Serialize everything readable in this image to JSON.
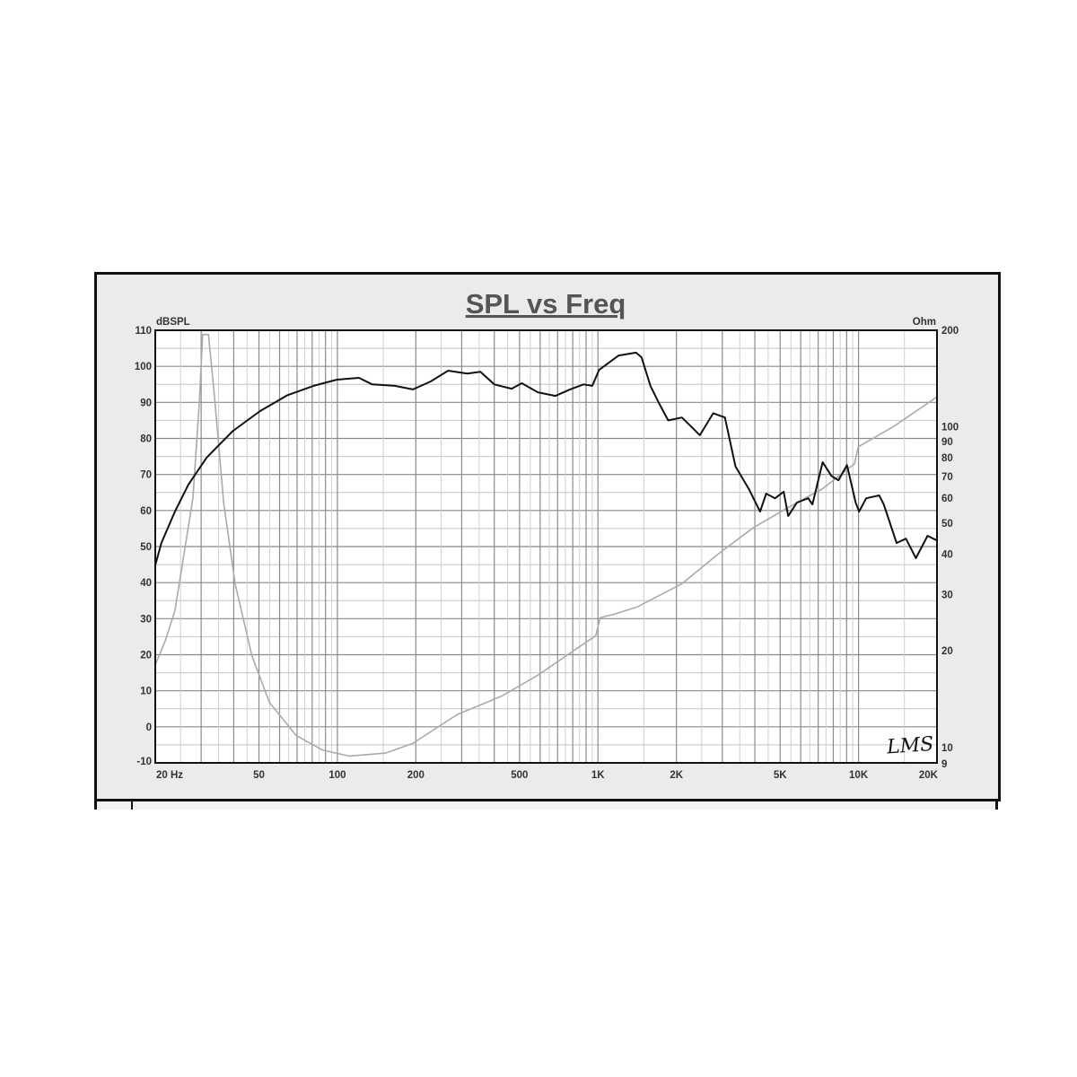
{
  "chart_data": {
    "type": "line",
    "title": "SPL vs Freq",
    "x_scale": "log",
    "xlim": [
      20,
      20000
    ],
    "x_ticks": [
      {
        "value": 20,
        "label": "20  Hz"
      },
      {
        "value": 50,
        "label": "50"
      },
      {
        "value": 100,
        "label": "100"
      },
      {
        "value": 200,
        "label": "200"
      },
      {
        "value": 500,
        "label": "500"
      },
      {
        "value": 1000,
        "label": "1K"
      },
      {
        "value": 2000,
        "label": "2K"
      },
      {
        "value": 5000,
        "label": "5K"
      },
      {
        "value": 10000,
        "label": "10K"
      },
      {
        "value": 20000,
        "label": "20K"
      }
    ],
    "y_left": {
      "label": "dBSPL",
      "lim": [
        -10,
        110
      ],
      "ticks": [
        110,
        100,
        90,
        80,
        70,
        60,
        50,
        40,
        30,
        20,
        10,
        0,
        -10
      ]
    },
    "y_right": {
      "label": "Ohm",
      "scale": "log",
      "lim": [
        8.95,
        200
      ],
      "ticks": [
        200,
        100,
        90,
        80,
        70,
        60,
        50,
        40,
        30,
        20,
        10,
        9
      ]
    },
    "grid": true,
    "logo": "LMS",
    "series": [
      {
        "axis": "left",
        "color": "#111111",
        "points": [
          [
            20,
            44.8
          ],
          [
            21.1,
            51
          ],
          [
            23.8,
            59.7
          ],
          [
            26.8,
            67.2
          ],
          [
            31.5,
            74.7
          ],
          [
            39.6,
            82
          ],
          [
            50.5,
            87.6
          ],
          [
            64.4,
            92
          ],
          [
            81,
            94.6
          ],
          [
            99.6,
            96.3
          ],
          [
            121,
            96.8
          ],
          [
            136,
            95
          ],
          [
            166,
            94.6
          ],
          [
            195,
            93.6
          ],
          [
            228,
            95.8
          ],
          [
            266,
            98.8
          ],
          [
            315,
            98
          ],
          [
            354,
            98.5
          ],
          [
            400,
            95
          ],
          [
            466,
            93.8
          ],
          [
            510,
            95.3
          ],
          [
            588,
            92.8
          ],
          [
            687,
            91.8
          ],
          [
            781,
            93.6
          ],
          [
            880,
            95
          ],
          [
            951,
            94.6
          ],
          [
            1010,
            99
          ],
          [
            1200,
            103
          ],
          [
            1400,
            103.8
          ],
          [
            1470,
            102.5
          ],
          [
            1590,
            94.6
          ],
          [
            1720,
            89.6
          ],
          [
            1860,
            85
          ],
          [
            2100,
            85.8
          ],
          [
            2270,
            83.4
          ],
          [
            2460,
            80.9
          ],
          [
            2770,
            87
          ],
          [
            3070,
            85.8
          ],
          [
            3370,
            72.2
          ],
          [
            3790,
            66
          ],
          [
            4190,
            59.7
          ],
          [
            4420,
            64.7
          ],
          [
            4780,
            63.4
          ],
          [
            5160,
            65.2
          ],
          [
            5370,
            58.5
          ],
          [
            5800,
            62.2
          ],
          [
            6410,
            63.4
          ],
          [
            6650,
            61.7
          ],
          [
            7280,
            73.4
          ],
          [
            7870,
            69.6
          ],
          [
            8370,
            68.4
          ],
          [
            9030,
            72.6
          ],
          [
            9750,
            62.2
          ],
          [
            10050,
            59.7
          ],
          [
            10700,
            63.4
          ],
          [
            12000,
            64.2
          ],
          [
            12500,
            61.7
          ],
          [
            14000,
            51
          ],
          [
            15200,
            52.2
          ],
          [
            16600,
            46.8
          ],
          [
            18400,
            53
          ],
          [
            20000,
            51.7
          ]
        ]
      },
      {
        "axis": "right",
        "color": "#aaaaaa",
        "points": [
          [
            20,
            18.1
          ],
          [
            21.9,
            21.6
          ],
          [
            23.8,
            26.7
          ],
          [
            25.7,
            39.4
          ],
          [
            27.9,
            60
          ],
          [
            29.5,
            118
          ],
          [
            30.4,
            194
          ],
          [
            32,
            194
          ],
          [
            33.7,
            126
          ],
          [
            36.6,
            58
          ],
          [
            40.5,
            32.4
          ],
          [
            47,
            19.3
          ],
          [
            54.9,
            13.8
          ],
          [
            69.4,
            10.9
          ],
          [
            88,
            9.8
          ],
          [
            111,
            9.4
          ],
          [
            153,
            9.6
          ],
          [
            195,
            10.3
          ],
          [
            236,
            11.4
          ],
          [
            290,
            12.7
          ],
          [
            365,
            13.7
          ],
          [
            430,
            14.5
          ],
          [
            588,
            16.8
          ],
          [
            804,
            20
          ],
          [
            980,
            22.3
          ],
          [
            1020,
            25.4
          ],
          [
            1150,
            26
          ],
          [
            1410,
            27.4
          ],
          [
            2100,
            32.4
          ],
          [
            2870,
            39.9
          ],
          [
            3950,
            48.5
          ],
          [
            5370,
            56
          ],
          [
            7280,
            64.1
          ],
          [
            9650,
            76.7
          ],
          [
            9970,
            86.6
          ],
          [
            13700,
            100.5
          ],
          [
            20000,
            124
          ]
        ]
      }
    ]
  }
}
